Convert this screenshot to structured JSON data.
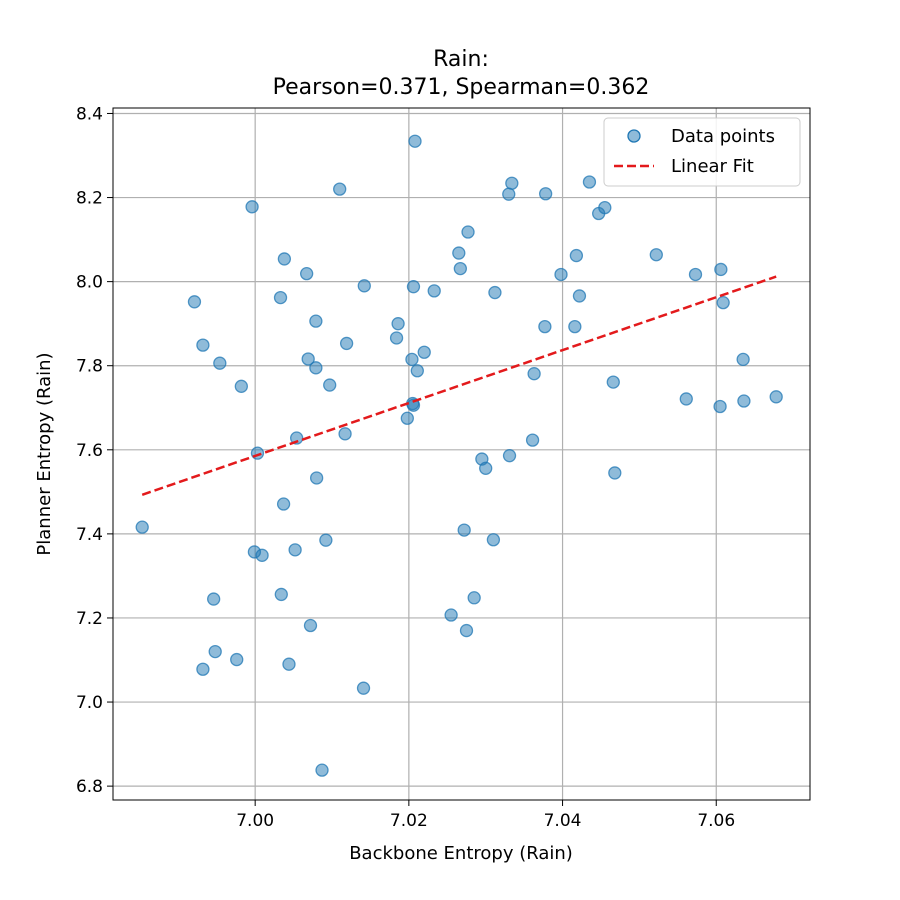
{
  "chart_data": {
    "type": "scatter",
    "title_line1": "Rain:",
    "title_line2": "Pearson=0.371, Spearman=0.362",
    "xlabel": "Backbone Entropy (Rain)",
    "ylabel": "Planner Entropy (Rain)",
    "xlim": [
      6.9815,
      7.0722
    ],
    "ylim": [
      6.767,
      8.413
    ],
    "x_ticks": [
      7.0,
      7.02,
      7.04,
      7.06
    ],
    "x_tick_labels": [
      "7.00",
      "7.02",
      "7.04",
      "7.06"
    ],
    "y_ticks": [
      6.8,
      7.0,
      7.2,
      7.4,
      7.6,
      7.8,
      8.0,
      8.2,
      8.4
    ],
    "y_tick_labels": [
      "6.8",
      "7.0",
      "7.2",
      "7.4",
      "7.6",
      "7.8",
      "8.0",
      "8.2",
      "8.4"
    ],
    "grid": true,
    "legend": {
      "placement": "top-right",
      "entries": [
        "Data points",
        "Linear Fit"
      ]
    },
    "series": [
      {
        "name": "Data points",
        "kind": "scatter",
        "color": "#1f77b4",
        "points": [
          [
            6.9853,
            7.416
          ],
          [
            6.9921,
            7.952
          ],
          [
            6.9932,
            7.849
          ],
          [
            6.9932,
            7.078
          ],
          [
            6.9946,
            7.245
          ],
          [
            6.9948,
            7.12
          ],
          [
            6.9954,
            7.806
          ],
          [
            6.9976,
            7.101
          ],
          [
            6.9982,
            7.751
          ],
          [
            6.9996,
            8.178
          ],
          [
            6.9999,
            7.357
          ],
          [
            7.0003,
            7.592
          ],
          [
            7.0009,
            7.349
          ],
          [
            7.0033,
            7.962
          ],
          [
            7.0034,
            7.256
          ],
          [
            7.0037,
            7.471
          ],
          [
            7.0038,
            8.054
          ],
          [
            7.0044,
            7.09
          ],
          [
            7.0052,
            7.362
          ],
          [
            7.0054,
            7.628
          ],
          [
            7.0067,
            8.019
          ],
          [
            7.0069,
            7.816
          ],
          [
            7.0072,
            7.182
          ],
          [
            7.0079,
            7.795
          ],
          [
            7.0079,
            7.906
          ],
          [
            7.008,
            7.533
          ],
          [
            7.0087,
            6.838
          ],
          [
            7.0092,
            7.385
          ],
          [
            7.0097,
            7.754
          ],
          [
            7.011,
            8.22
          ],
          [
            7.0117,
            7.638
          ],
          [
            7.0119,
            7.853
          ],
          [
            7.0141,
            7.033
          ],
          [
            7.0142,
            7.99
          ],
          [
            7.0184,
            7.866
          ],
          [
            7.0186,
            7.9
          ],
          [
            7.0198,
            7.675
          ],
          [
            7.0204,
            7.815
          ],
          [
            7.0205,
            7.71
          ],
          [
            7.0206,
            7.706
          ],
          [
            7.0206,
            7.988
          ],
          [
            7.0208,
            8.334
          ],
          [
            7.0211,
            7.788
          ],
          [
            7.022,
            7.832
          ],
          [
            7.0233,
            7.978
          ],
          [
            7.0255,
            7.207
          ],
          [
            7.0265,
            8.068
          ],
          [
            7.0267,
            8.031
          ],
          [
            7.0272,
            7.409
          ],
          [
            7.0275,
            7.17
          ],
          [
            7.0277,
            8.118
          ],
          [
            7.0285,
            7.248
          ],
          [
            7.0295,
            7.578
          ],
          [
            7.03,
            7.556
          ],
          [
            7.031,
            7.386
          ],
          [
            7.0312,
            7.974
          ],
          [
            7.033,
            8.208
          ],
          [
            7.0331,
            7.586
          ],
          [
            7.0334,
            8.234
          ],
          [
            7.0361,
            7.623
          ],
          [
            7.0363,
            7.781
          ],
          [
            7.0377,
            7.893
          ],
          [
            7.0378,
            8.209
          ],
          [
            7.0398,
            8.017
          ],
          [
            7.0416,
            7.893
          ],
          [
            7.0418,
            8.062
          ],
          [
            7.0422,
            7.966
          ],
          [
            7.0435,
            8.237
          ],
          [
            7.0447,
            8.162
          ],
          [
            7.0455,
            8.176
          ],
          [
            7.0466,
            7.761
          ],
          [
            7.0468,
            7.545
          ],
          [
            7.0522,
            8.064
          ],
          [
            7.0561,
            7.721
          ],
          [
            7.0573,
            8.017
          ],
          [
            7.0605,
            7.703
          ],
          [
            7.0606,
            8.029
          ],
          [
            7.0609,
            7.95
          ],
          [
            7.0635,
            7.815
          ],
          [
            7.0636,
            7.716
          ],
          [
            7.0678,
            7.726
          ]
        ]
      },
      {
        "name": "Linear Fit",
        "kind": "line",
        "style": "dashed",
        "color": "#e31a1c",
        "points": [
          [
            6.9853,
            7.493
          ],
          [
            7.0678,
            8.012
          ]
        ]
      }
    ]
  }
}
